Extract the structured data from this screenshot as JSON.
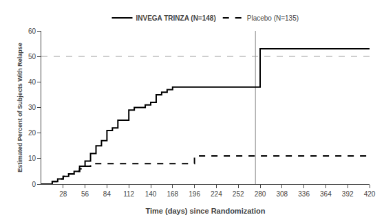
{
  "chart_data": {
    "type": "step",
    "x_label": "Time (days) since Randomization",
    "y_label": "Estimated Percent of Subjects With Relapse",
    "xlim": [
      0,
      420
    ],
    "ylim": [
      0,
      60
    ],
    "xticks": [
      28,
      56,
      84,
      112,
      140,
      168,
      196,
      224,
      252,
      280,
      308,
      336,
      364,
      392,
      420
    ],
    "yticks": [
      0,
      10,
      20,
      30,
      40,
      50,
      60
    ],
    "grid": false,
    "legend": "top",
    "series": [
      {
        "name": "INVEGA TRINZA (N=148)",
        "color": "#000000",
        "line_style": "solid",
        "x": [
          0,
          7,
          14,
          21,
          28,
          35,
          42,
          49,
          56,
          63,
          70,
          77,
          84,
          91,
          98,
          112,
          119,
          126,
          133,
          140,
          147,
          154,
          161,
          168,
          182,
          196,
          252,
          274,
          280,
          420
        ],
        "values": [
          0,
          0,
          1,
          2,
          3,
          4,
          5,
          7,
          9,
          12,
          15,
          17,
          21,
          22,
          25,
          29,
          30,
          30,
          31,
          32,
          35,
          36,
          37,
          38,
          38,
          38,
          38,
          38,
          53,
          53
        ]
      },
      {
        "name": "Placebo (N=135)",
        "color": "#000000",
        "line_style": "dashed",
        "x": [
          0,
          7,
          14,
          21,
          28,
          35,
          42,
          49,
          56,
          63,
          70,
          77,
          84,
          112,
          168,
          196,
          252,
          274,
          280,
          420
        ],
        "values": [
          0,
          0,
          1,
          2,
          3,
          4,
          5,
          6,
          7,
          8,
          8,
          8,
          8,
          8,
          8,
          11,
          11,
          11,
          11,
          11
        ]
      }
    ],
    "reference_lines": [
      {
        "axis": "y",
        "value": 50,
        "color": "#aaaaaa",
        "line_style": "dashed"
      },
      {
        "axis": "x",
        "value": 274,
        "color": "#888888",
        "line_style": "solid"
      }
    ]
  }
}
